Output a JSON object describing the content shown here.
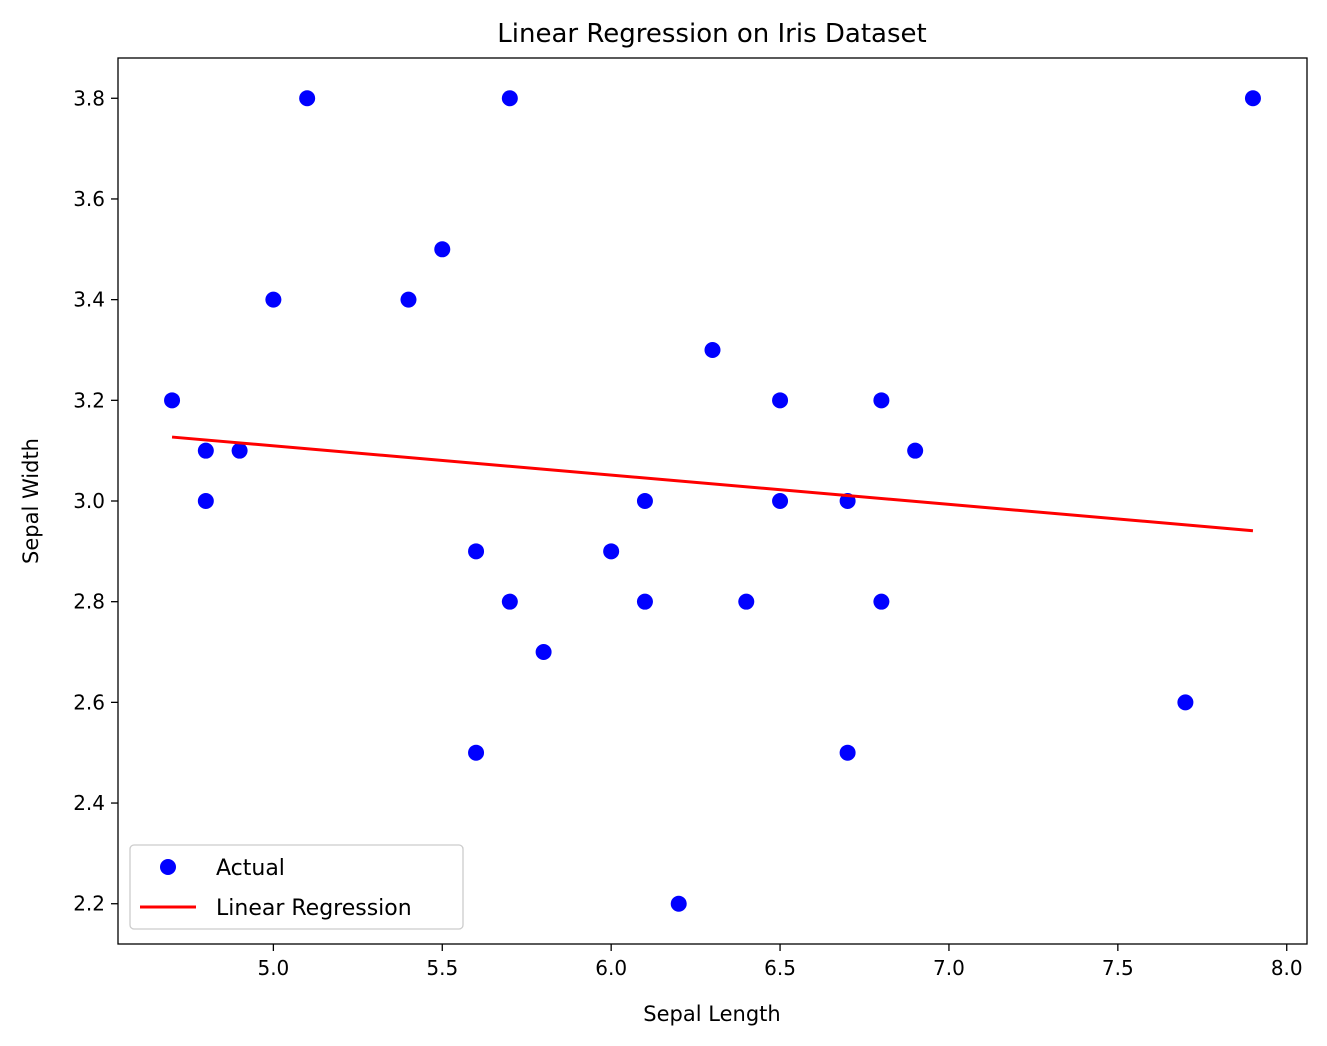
{
  "chart_data": {
    "type": "scatter",
    "title": "Linear Regression on Iris Dataset",
    "xlabel": "Sepal Length",
    "ylabel": "Sepal Width",
    "xlim": [
      4.54,
      8.06
    ],
    "ylim": [
      2.12,
      3.88
    ],
    "xticks": [
      5.0,
      5.5,
      6.0,
      6.5,
      7.0,
      7.5,
      8.0
    ],
    "xtick_labels": [
      "5.0",
      "5.5",
      "6.0",
      "6.5",
      "7.0",
      "7.5",
      "8.0"
    ],
    "yticks": [
      2.2,
      2.4,
      2.6,
      2.8,
      3.0,
      3.2,
      3.4,
      3.6,
      3.8
    ],
    "ytick_labels": [
      "2.2",
      "2.4",
      "2.6",
      "2.8",
      "3.0",
      "3.2",
      "3.4",
      "3.6",
      "3.8"
    ],
    "grid": false,
    "legend_position": "lower-left",
    "series": [
      {
        "name": "Actual",
        "kind": "scatter",
        "color": "#0000ff",
        "points": [
          [
            5.1,
            3.8
          ],
          [
            5.7,
            3.8
          ],
          [
            7.9,
            3.8
          ],
          [
            5.5,
            3.5
          ],
          [
            5.0,
            3.4
          ],
          [
            5.4,
            3.4
          ],
          [
            6.3,
            3.3
          ],
          [
            4.7,
            3.2
          ],
          [
            6.5,
            3.2
          ],
          [
            6.8,
            3.2
          ],
          [
            4.8,
            3.1
          ],
          [
            4.9,
            3.1
          ],
          [
            6.9,
            3.1
          ],
          [
            4.8,
            3.0
          ],
          [
            6.1,
            3.0
          ],
          [
            6.5,
            3.0
          ],
          [
            6.7,
            3.0
          ],
          [
            5.6,
            2.9
          ],
          [
            6.0,
            2.9
          ],
          [
            5.7,
            2.8
          ],
          [
            6.1,
            2.8
          ],
          [
            6.4,
            2.8
          ],
          [
            6.8,
            2.8
          ],
          [
            5.8,
            2.7
          ],
          [
            7.7,
            2.6
          ],
          [
            5.6,
            2.5
          ],
          [
            6.7,
            2.5
          ],
          [
            6.2,
            2.2
          ]
        ]
      },
      {
        "name": "Linear Regression",
        "kind": "line",
        "color": "#ff0000",
        "points": [
          [
            4.7,
            3.127
          ],
          [
            7.9,
            2.941
          ]
        ]
      }
    ]
  }
}
